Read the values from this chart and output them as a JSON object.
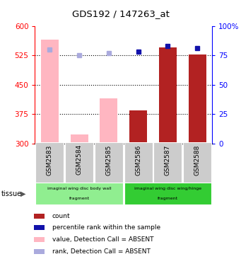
{
  "title": "GDS192 / 147263_at",
  "samples": [
    "GSM2583",
    "GSM2584",
    "GSM2585",
    "GSM2586",
    "GSM2587",
    "GSM2588"
  ],
  "ylim_left": [
    300,
    600
  ],
  "ylim_right": [
    0,
    100
  ],
  "yticks_left": [
    300,
    375,
    450,
    525,
    600
  ],
  "yticks_right": [
    0,
    25,
    50,
    75,
    100
  ],
  "bar_values_absent": [
    565,
    323,
    415,
    null,
    null,
    null
  ],
  "bar_values_present": [
    null,
    null,
    null,
    385,
    545,
    527
  ],
  "rank_absent_pct": [
    null,
    75,
    77,
    null,
    null,
    null
  ],
  "rank_absent_pct_gsm2583": 80,
  "rank_present_pct": [
    null,
    null,
    null,
    78,
    83,
    81
  ],
  "absent_bar_color": "#FFB6C1",
  "present_bar_color": "#B22222",
  "absent_rank_color": "#AAAADD",
  "present_rank_color": "#1111AA",
  "tissue_groups": [
    {
      "label": "imaginal wing disc body wall\nfragment",
      "start": 0,
      "end": 3,
      "color": "#90EE90"
    },
    {
      "label": "imaginal wing disc wing/hinge\nfragment",
      "start": 3,
      "end": 6,
      "color": "#33CC33"
    }
  ],
  "legend_items": [
    {
      "color": "#B22222",
      "label": "count"
    },
    {
      "color": "#1111AA",
      "label": "percentile rank within the sample"
    },
    {
      "color": "#FFB6C1",
      "label": "value, Detection Call = ABSENT"
    },
    {
      "color": "#AAAADD",
      "label": "rank, Detection Call = ABSENT"
    }
  ],
  "tissue_label": "tissue",
  "bar_width": 0.6,
  "marker_size": 5
}
